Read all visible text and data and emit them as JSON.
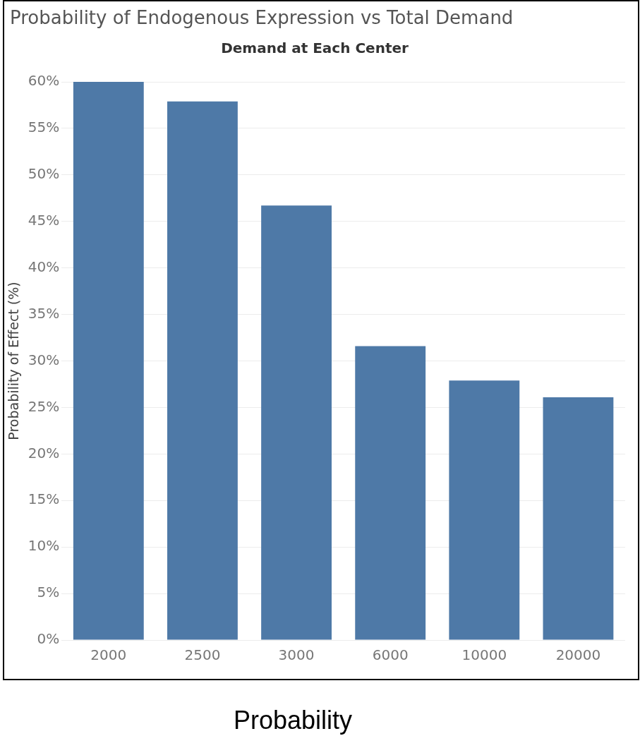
{
  "chart_data": {
    "type": "bar",
    "title": "Probability of Endogenous Expression vs Total Demand",
    "subtitle": "Demand at Each Center",
    "ylabel": "Probability of Effect (%)",
    "categories": [
      "2000",
      "2500",
      "3000",
      "6000",
      "10000",
      "20000"
    ],
    "values": [
      60,
      57.9,
      46.7,
      31.6,
      27.9,
      26.1
    ],
    "color": "#4e79a7",
    "ylim": [
      0,
      60
    ],
    "yticks": [
      {
        "value": 0,
        "label": "0%"
      },
      {
        "value": 5,
        "label": "5%"
      },
      {
        "value": 10,
        "label": "10%"
      },
      {
        "value": 15,
        "label": "15%"
      },
      {
        "value": 20,
        "label": "20%"
      },
      {
        "value": 25,
        "label": "25%"
      },
      {
        "value": 30,
        "label": "30%"
      },
      {
        "value": 35,
        "label": "35%"
      },
      {
        "value": 40,
        "label": "40%"
      },
      {
        "value": 45,
        "label": "45%"
      },
      {
        "value": 50,
        "label": "50%"
      },
      {
        "value": 55,
        "label": "55%"
      },
      {
        "value": 60,
        "label": "60%"
      }
    ],
    "grid": "y",
    "legend": false,
    "annotations": [
      "Probability"
    ]
  }
}
